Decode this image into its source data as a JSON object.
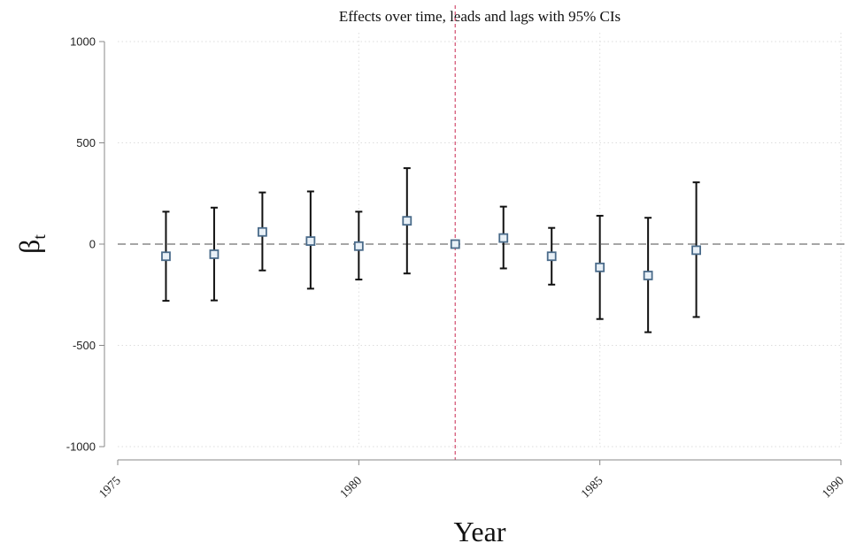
{
  "chart_data": {
    "type": "scatter",
    "title": "Effects over time, leads and lags with 95% CIs",
    "xlabel": "Year",
    "ylabel_main": "β",
    "ylabel_sub": "t",
    "xlim": [
      1975,
      1990
    ],
    "ylim": [
      -1000,
      1000
    ],
    "xticks": [
      1975,
      1980,
      1985,
      1990
    ],
    "yticks": [
      -1000,
      -500,
      0,
      500,
      1000
    ],
    "grid": true,
    "reference_vline_x": 1982,
    "reference_hline_y": 0,
    "colors": {
      "marker": "#4a6b8a",
      "error_bar": "#111111",
      "vline": "#d65a7a",
      "hline": "#888888",
      "grid": "#dddddd",
      "axis": "#888888"
    },
    "points": [
      {
        "x": 1976,
        "y": -60,
        "lo": -280,
        "hi": 160
      },
      {
        "x": 1977,
        "y": -50,
        "lo": -278,
        "hi": 180
      },
      {
        "x": 1978,
        "y": 60,
        "lo": -130,
        "hi": 255
      },
      {
        "x": 1979,
        "y": 15,
        "lo": -220,
        "hi": 260
      },
      {
        "x": 1980,
        "y": -10,
        "lo": -175,
        "hi": 160
      },
      {
        "x": 1981,
        "y": 115,
        "lo": -145,
        "hi": 375
      },
      {
        "x": 1982,
        "y": 0,
        "lo": 0,
        "hi": 0
      },
      {
        "x": 1983,
        "y": 30,
        "lo": -120,
        "hi": 185
      },
      {
        "x": 1984,
        "y": -60,
        "lo": -200,
        "hi": 80
      },
      {
        "x": 1985,
        "y": -115,
        "lo": -370,
        "hi": 140
      },
      {
        "x": 1986,
        "y": -155,
        "lo": -435,
        "hi": 130
      },
      {
        "x": 1987,
        "y": -30,
        "lo": -360,
        "hi": 305
      }
    ]
  }
}
